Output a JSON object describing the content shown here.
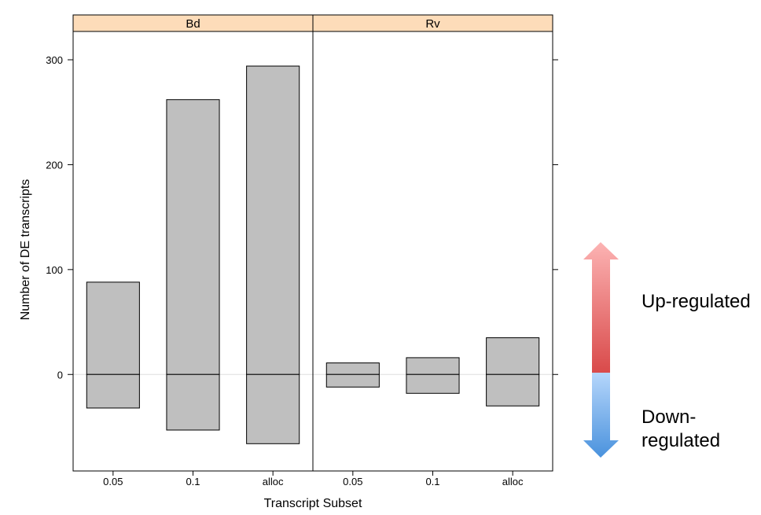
{
  "chart_data": {
    "type": "bar",
    "ylabel": "Number of DE transcripts",
    "xlabel": "Transcript Subset",
    "ylim": [
      -92,
      327
    ],
    "yticks": [
      0,
      100,
      200,
      300
    ],
    "categories": [
      "0.05",
      "0.1",
      "alloc"
    ],
    "panels": [
      {
        "name": "Bd",
        "series": [
          {
            "name": "",
            "values": [
              88,
              262,
              294
            ]
          },
          {
            "name": "",
            "values": [
              -32,
              -53,
              -66
            ]
          }
        ]
      },
      {
        "name": "Rv",
        "series": [
          {
            "name": "",
            "values": [
              11,
              16,
              35
            ]
          },
          {
            "name": "",
            "values": [
              -12,
              -18,
              -30
            ]
          }
        ]
      }
    ],
    "bar_fill": "#bfbfbf",
    "strip_fill": "#fddcb9",
    "grid": false
  },
  "legend": {
    "up_label": "Up-regulated",
    "down_label": "Down-regulated",
    "up_color": "#e05a5a",
    "down_color": "#5a9ee0"
  }
}
